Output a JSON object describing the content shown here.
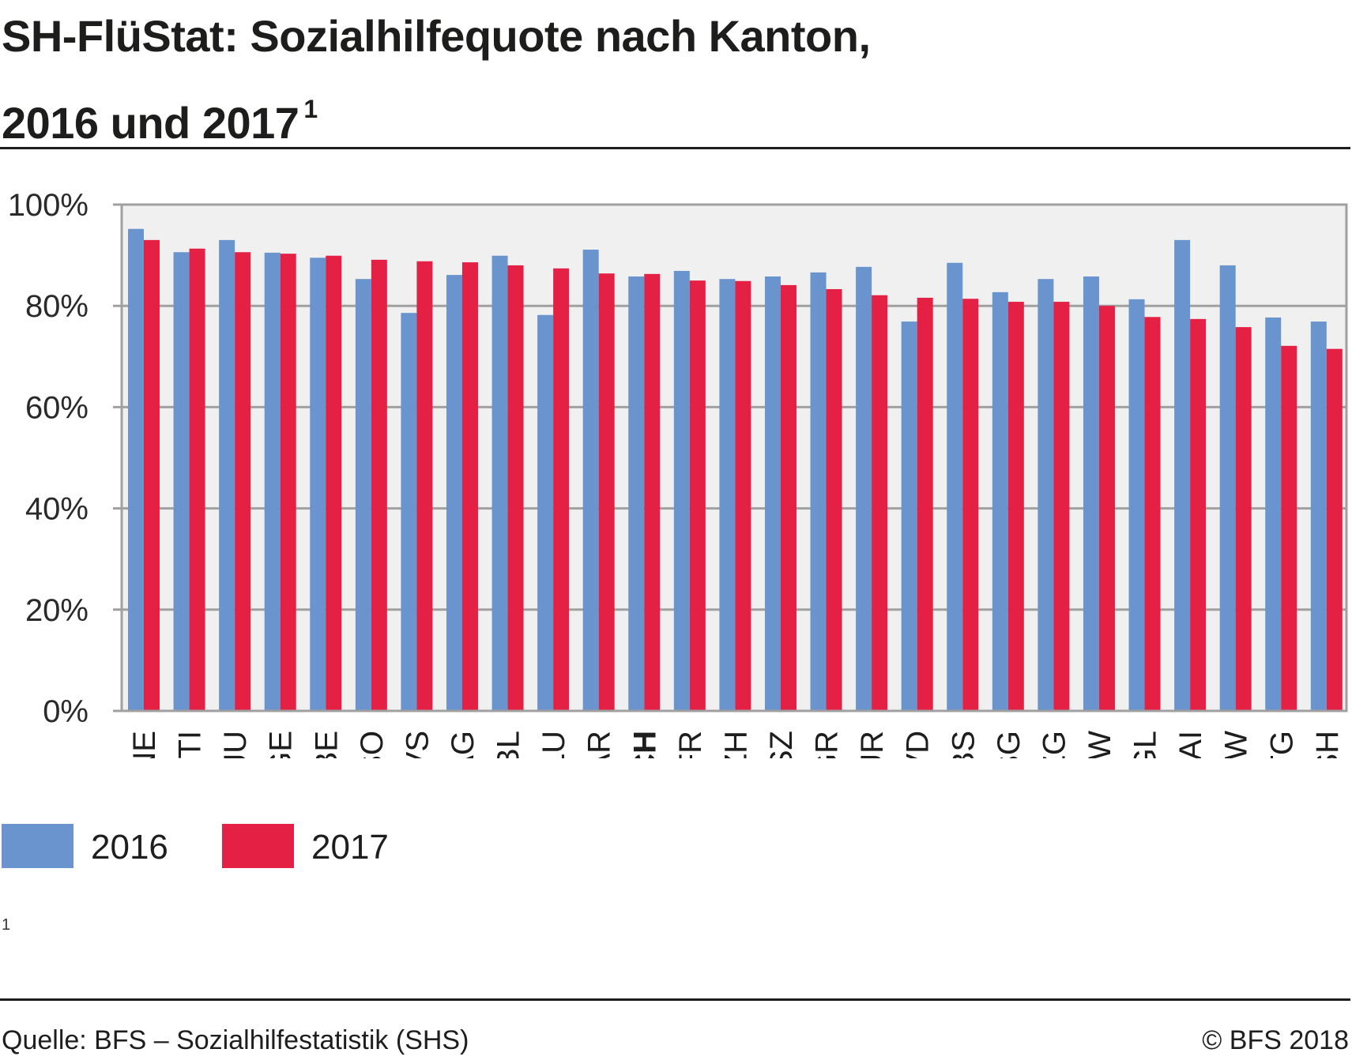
{
  "header": {
    "title_line1": "SH-FlüStat: Sozialhilfequote nach Kanton,",
    "title_line2": "2016 und 2017",
    "title_footnote_marker": "1"
  },
  "legend": [
    {
      "label": "2016",
      "color": "#6994cd"
    },
    {
      "label": "2017",
      "color": "#e42145"
    }
  ],
  "footnote": "1",
  "footer": {
    "source": "Quelle: BFS – Sozialhilfestatistik (SHS)",
    "copyright": "© BFS 2018"
  },
  "chart_data": {
    "type": "bar",
    "title": "SH-FlüStat: Sozialhilfequote nach Kanton, 2016 und 2017",
    "xlabel": "",
    "ylabel": "",
    "ylim": [
      0,
      100
    ],
    "yticks": [
      0,
      20,
      40,
      60,
      80,
      100
    ],
    "ytick_labels": [
      "0%",
      "20%",
      "40%",
      "60%",
      "80%",
      "100%"
    ],
    "grid": true,
    "legend_position": "bottom-left",
    "highlighted_category": "CH",
    "categories": [
      "NE",
      "TI",
      "JU",
      "GE",
      "BE",
      "SO",
      "VS",
      "AG",
      "BL",
      "LU",
      "AR",
      "CH",
      "FR",
      "ZH",
      "SZ",
      "GR",
      "UR",
      "VD",
      "BS",
      "SG",
      "ZG",
      "NW",
      "GL",
      "AI",
      "OW",
      "TG",
      "SH"
    ],
    "series": [
      {
        "name": "2016",
        "color": "#6994cd",
        "values": [
          95.2,
          90.6,
          93.0,
          90.5,
          89.5,
          85.3,
          78.6,
          86.1,
          89.9,
          78.2,
          91.1,
          85.8,
          86.9,
          85.3,
          85.8,
          86.6,
          87.7,
          76.9,
          88.5,
          82.7,
          85.3,
          85.8,
          81.3,
          93.0,
          88.0,
          77.7,
          76.9
        ]
      },
      {
        "name": "2017",
        "color": "#e42145",
        "values": [
          93.0,
          91.3,
          90.6,
          90.3,
          89.9,
          89.1,
          88.8,
          88.6,
          88.0,
          87.4,
          86.4,
          86.3,
          85.0,
          84.9,
          84.1,
          83.3,
          82.1,
          81.6,
          81.4,
          80.8,
          80.8,
          80.0,
          77.8,
          77.4,
          75.8,
          72.1,
          71.5
        ]
      }
    ]
  }
}
